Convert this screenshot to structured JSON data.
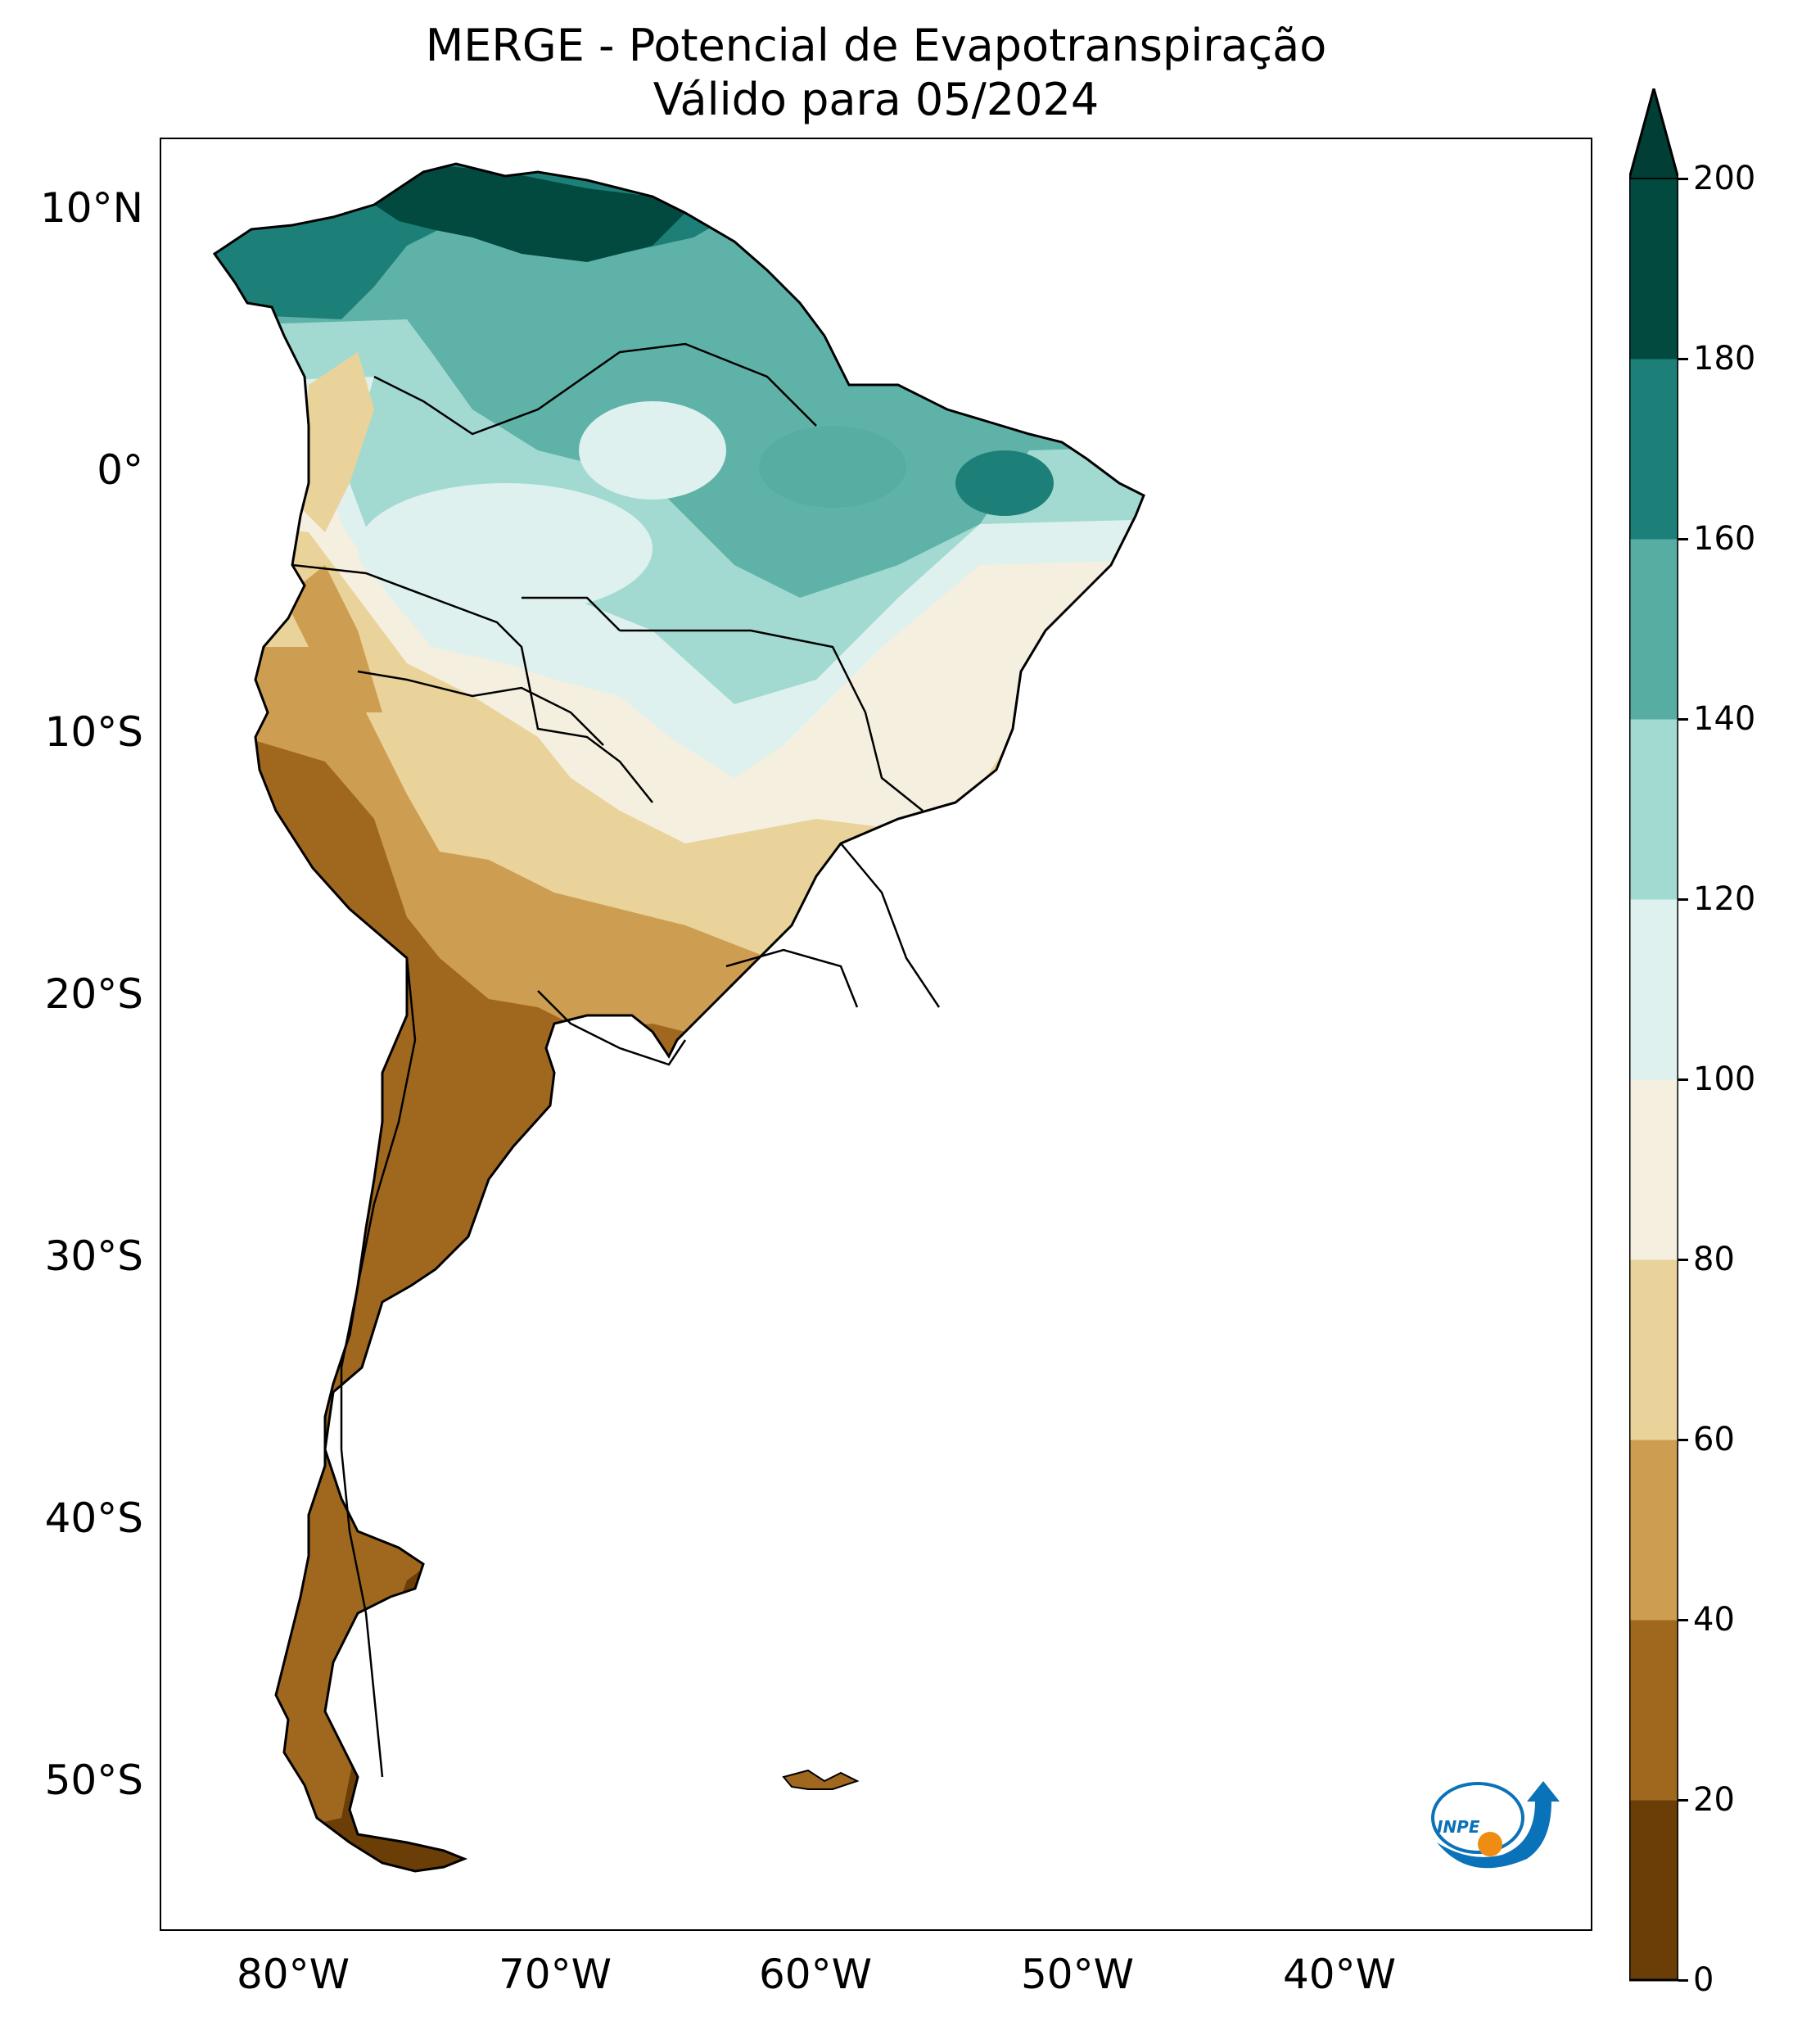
{
  "title": {
    "line1": "MERGE - Potencial de Evapotranspiração",
    "line2": "Válido para 05/2024"
  },
  "lat_ticks": [
    "10°N",
    "0°",
    "10°S",
    "20°S",
    "30°S",
    "40°S",
    "50°S"
  ],
  "lon_ticks": [
    "80°W",
    "70°W",
    "60°W",
    "50°W",
    "40°W"
  ],
  "colorbar": {
    "ticks": [
      "0",
      "20",
      "40",
      "60",
      "80",
      "100",
      "120",
      "140",
      "160",
      "180",
      "200"
    ],
    "extend": "max",
    "colors": [
      "#6b3e08",
      "#a0681e",
      "#cd9d52",
      "#e9d39a",
      "#f5efdf",
      "#def1ee",
      "#a2dad1",
      "#58ada3",
      "#1d8078",
      "#024a40",
      "#013f36"
    ]
  },
  "logo": {
    "text": "INPE",
    "colors": {
      "blue": "#0a72b8",
      "orange": "#ef8c14"
    }
  }
}
